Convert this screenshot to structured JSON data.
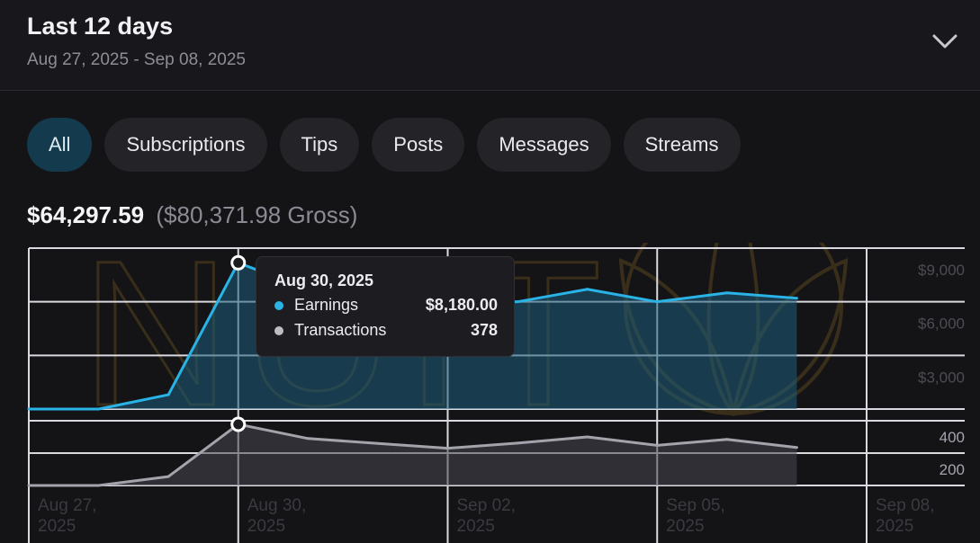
{
  "header": {
    "title": "Last 12 days",
    "date_range": "Aug 27, 2025 - Sep 08, 2025",
    "toggle_icon": "chevron-down-icon"
  },
  "tabs": [
    {
      "label": "All",
      "active": true
    },
    {
      "label": "Subscriptions",
      "active": false
    },
    {
      "label": "Tips",
      "active": false
    },
    {
      "label": "Posts",
      "active": false
    },
    {
      "label": "Messages",
      "active": false
    },
    {
      "label": "Streams",
      "active": false
    }
  ],
  "totals": {
    "net": "$64,297.59",
    "gross": "($80,371.98 Gross)"
  },
  "watermark": {
    "text": "NUIT",
    "icon": "lotus-icon"
  },
  "tooltip": {
    "date": "Aug 30, 2025",
    "rows": [
      {
        "label": "Earnings",
        "value": "$8,180.00",
        "color": "#29b3e6"
      },
      {
        "label": "Transactions",
        "value": "378",
        "color": "#bdbdc4"
      }
    ]
  },
  "colors": {
    "earnings": "#29b3e6",
    "transactions": "#a3a3ab",
    "active_tab": "#143a4d"
  },
  "chart_data": [
    {
      "type": "area",
      "title": "",
      "x": [
        "Aug 27, 2025",
        "Aug 28, 2025",
        "Aug 29, 2025",
        "Aug 30, 2025",
        "Aug 31, 2025",
        "Sep 01, 2025",
        "Sep 02, 2025",
        "Sep 03, 2025",
        "Sep 04, 2025",
        "Sep 05, 2025",
        "Sep 06, 2025",
        "Sep 07, 2025"
      ],
      "series": [
        {
          "name": "Earnings",
          "values": [
            0,
            0,
            800,
            8180,
            6700,
            6400,
            6000,
            6000,
            6700,
            6000,
            6500,
            6200
          ]
        }
      ],
      "ylim": [
        0,
        9000
      ],
      "yticks": [
        "$3,000",
        "$6,000",
        "$9,000"
      ],
      "ytick_values": [
        3000,
        6000,
        9000
      ],
      "xticks": [
        "Aug 27, 2025",
        "Aug 30, 2025",
        "Sep 02, 2025",
        "Sep 05, 2025",
        "Sep 08, 2025"
      ],
      "xtick_index": [
        0,
        3,
        6,
        9,
        12
      ],
      "grid": true
    },
    {
      "type": "area",
      "title": "",
      "x": [
        "Aug 27, 2025",
        "Aug 28, 2025",
        "Aug 29, 2025",
        "Aug 30, 2025",
        "Aug 31, 2025",
        "Sep 01, 2025",
        "Sep 02, 2025",
        "Sep 03, 2025",
        "Sep 04, 2025",
        "Sep 05, 2025",
        "Sep 06, 2025",
        "Sep 07, 2025"
      ],
      "series": [
        {
          "name": "Transactions",
          "values": [
            0,
            0,
            55,
            378,
            290,
            260,
            230,
            262,
            300,
            248,
            285,
            235
          ]
        }
      ],
      "ylim": [
        0,
        400
      ],
      "yticks": [
        "200",
        "400"
      ],
      "ytick_values": [
        200,
        400
      ],
      "grid": true
    }
  ]
}
